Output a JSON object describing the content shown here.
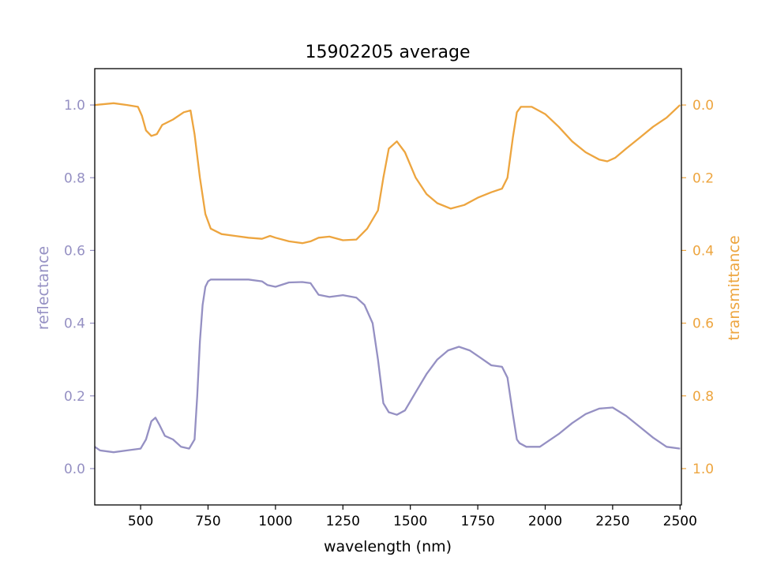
{
  "chart_data": {
    "type": "line",
    "title": "15902205 average",
    "xlabel": "wavelength (nm)",
    "ylabel_left": "reflectance",
    "ylabel_right": "transmittance",
    "xlim": [
      330,
      2505
    ],
    "ylim_left": [
      -0.1,
      1.1
    ],
    "ylim_right": [
      1.1,
      -0.1
    ],
    "x_ticks": [
      500,
      750,
      1000,
      1250,
      1500,
      1750,
      2000,
      2250,
      2500
    ],
    "x_tick_labels": [
      "500",
      "750",
      "1000",
      "1250",
      "1500",
      "1750",
      "2000",
      "2250",
      "2500"
    ],
    "y_left_ticks": [
      0.0,
      0.2,
      0.4,
      0.6,
      0.8,
      1.0
    ],
    "y_left_tick_labels": [
      "0.0",
      "0.2",
      "0.4",
      "0.6",
      "0.8",
      "1.0"
    ],
    "y_right_ticks": [
      0.0,
      0.2,
      0.4,
      0.6,
      0.8,
      1.0
    ],
    "y_right_tick_labels": [
      "0.0",
      "0.2",
      "0.4",
      "0.6",
      "0.8",
      "1.0"
    ],
    "grid": false,
    "series": [
      {
        "axis": "left",
        "color": "#9590c3",
        "points": [
          [
            330,
            0.06
          ],
          [
            350,
            0.05
          ],
          [
            400,
            0.045
          ],
          [
            450,
            0.05
          ],
          [
            500,
            0.055
          ],
          [
            520,
            0.08
          ],
          [
            540,
            0.13
          ],
          [
            555,
            0.14
          ],
          [
            570,
            0.12
          ],
          [
            590,
            0.09
          ],
          [
            620,
            0.08
          ],
          [
            650,
            0.06
          ],
          [
            680,
            0.055
          ],
          [
            700,
            0.08
          ],
          [
            710,
            0.2
          ],
          [
            720,
            0.35
          ],
          [
            730,
            0.45
          ],
          [
            740,
            0.5
          ],
          [
            750,
            0.515
          ],
          [
            760,
            0.52
          ],
          [
            800,
            0.52
          ],
          [
            850,
            0.52
          ],
          [
            900,
            0.52
          ],
          [
            950,
            0.515
          ],
          [
            970,
            0.505
          ],
          [
            1000,
            0.5
          ],
          [
            1050,
            0.512
          ],
          [
            1100,
            0.513
          ],
          [
            1130,
            0.51
          ],
          [
            1160,
            0.478
          ],
          [
            1200,
            0.472
          ],
          [
            1250,
            0.477
          ],
          [
            1300,
            0.47
          ],
          [
            1330,
            0.45
          ],
          [
            1360,
            0.4
          ],
          [
            1380,
            0.3
          ],
          [
            1400,
            0.18
          ],
          [
            1420,
            0.155
          ],
          [
            1450,
            0.148
          ],
          [
            1480,
            0.16
          ],
          [
            1520,
            0.21
          ],
          [
            1560,
            0.26
          ],
          [
            1600,
            0.3
          ],
          [
            1640,
            0.325
          ],
          [
            1680,
            0.335
          ],
          [
            1720,
            0.325
          ],
          [
            1760,
            0.305
          ],
          [
            1800,
            0.284
          ],
          [
            1840,
            0.28
          ],
          [
            1860,
            0.25
          ],
          [
            1880,
            0.15
          ],
          [
            1895,
            0.08
          ],
          [
            1905,
            0.07
          ],
          [
            1930,
            0.06
          ],
          [
            1980,
            0.06
          ],
          [
            2000,
            0.07
          ],
          [
            2050,
            0.095
          ],
          [
            2100,
            0.125
          ],
          [
            2150,
            0.15
          ],
          [
            2200,
            0.165
          ],
          [
            2250,
            0.168
          ],
          [
            2300,
            0.145
          ],
          [
            2350,
            0.115
          ],
          [
            2400,
            0.085
          ],
          [
            2450,
            0.06
          ],
          [
            2500,
            0.055
          ]
        ]
      },
      {
        "axis": "right",
        "color": "#eda53f",
        "points": [
          [
            330,
            0.0
          ],
          [
            400,
            -0.005
          ],
          [
            450,
            0.0
          ],
          [
            490,
            0.005
          ],
          [
            505,
            0.03
          ],
          [
            520,
            0.07
          ],
          [
            540,
            0.085
          ],
          [
            560,
            0.08
          ],
          [
            580,
            0.055
          ],
          [
            620,
            0.04
          ],
          [
            660,
            0.02
          ],
          [
            685,
            0.015
          ],
          [
            700,
            0.08
          ],
          [
            720,
            0.2
          ],
          [
            740,
            0.3
          ],
          [
            760,
            0.34
          ],
          [
            800,
            0.355
          ],
          [
            850,
            0.36
          ],
          [
            900,
            0.365
          ],
          [
            950,
            0.368
          ],
          [
            980,
            0.36
          ],
          [
            1000,
            0.365
          ],
          [
            1050,
            0.375
          ],
          [
            1100,
            0.38
          ],
          [
            1130,
            0.375
          ],
          [
            1160,
            0.365
          ],
          [
            1200,
            0.362
          ],
          [
            1250,
            0.372
          ],
          [
            1300,
            0.37
          ],
          [
            1340,
            0.34
          ],
          [
            1380,
            0.29
          ],
          [
            1400,
            0.2
          ],
          [
            1420,
            0.12
          ],
          [
            1450,
            0.1
          ],
          [
            1480,
            0.13
          ],
          [
            1520,
            0.2
          ],
          [
            1560,
            0.245
          ],
          [
            1600,
            0.27
          ],
          [
            1650,
            0.285
          ],
          [
            1700,
            0.275
          ],
          [
            1750,
            0.255
          ],
          [
            1800,
            0.24
          ],
          [
            1840,
            0.23
          ],
          [
            1860,
            0.2
          ],
          [
            1880,
            0.09
          ],
          [
            1895,
            0.02
          ],
          [
            1910,
            0.005
          ],
          [
            1950,
            0.005
          ],
          [
            2000,
            0.025
          ],
          [
            2050,
            0.06
          ],
          [
            2100,
            0.1
          ],
          [
            2150,
            0.13
          ],
          [
            2200,
            0.15
          ],
          [
            2230,
            0.155
          ],
          [
            2260,
            0.145
          ],
          [
            2300,
            0.12
          ],
          [
            2350,
            0.09
          ],
          [
            2400,
            0.06
          ],
          [
            2450,
            0.035
          ],
          [
            2500,
            0.0
          ]
        ]
      }
    ],
    "left_axis_color": "#9590c3",
    "right_axis_color": "#eda53f"
  }
}
